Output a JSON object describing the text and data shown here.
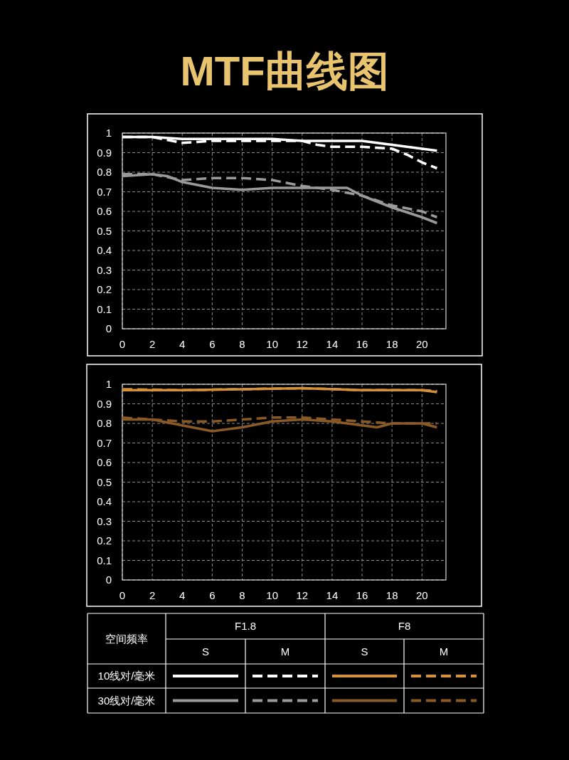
{
  "chart_data": [
    {
      "type": "line",
      "title": "MTF曲线图",
      "xlim": [
        0,
        21.6
      ],
      "ylim": [
        0,
        1
      ],
      "xticks": [
        0,
        2,
        4,
        6,
        8,
        10,
        12,
        14,
        16,
        18,
        20
      ],
      "yticks": [
        0,
        0.1,
        0.2,
        0.3,
        0.4,
        0.5,
        0.6,
        0.7,
        0.8,
        0.9,
        1
      ],
      "grid": true,
      "series": [
        {
          "color": "#ffffff",
          "line_style": "solid",
          "x": [
            0,
            2,
            4,
            6,
            8,
            10,
            12,
            14,
            16,
            18,
            20,
            21
          ],
          "values": [
            0.98,
            0.98,
            0.97,
            0.97,
            0.97,
            0.97,
            0.96,
            0.96,
            0.96,
            0.94,
            0.92,
            0.91
          ]
        },
        {
          "color": "#ffffff",
          "line_style": "dashed",
          "x": [
            0,
            2,
            4,
            5,
            6,
            8,
            10,
            12,
            13,
            14,
            16,
            18,
            19,
            20,
            21
          ],
          "values": [
            0.98,
            0.98,
            0.95,
            0.955,
            0.96,
            0.96,
            0.96,
            0.96,
            0.94,
            0.93,
            0.93,
            0.92,
            0.89,
            0.85,
            0.82
          ]
        },
        {
          "color": "#9a9a9a",
          "line_style": "solid",
          "x": [
            0,
            2,
            3,
            4,
            6,
            8,
            10,
            12,
            14,
            15,
            16,
            18,
            20,
            21
          ],
          "values": [
            0.78,
            0.79,
            0.78,
            0.75,
            0.72,
            0.71,
            0.72,
            0.72,
            0.72,
            0.72,
            0.68,
            0.62,
            0.57,
            0.54
          ]
        },
        {
          "color": "#9a9a9a",
          "line_style": "dashed",
          "x": [
            0,
            2,
            4,
            6,
            8,
            10,
            12,
            14,
            16,
            18,
            20,
            21
          ],
          "values": [
            0.79,
            0.79,
            0.76,
            0.77,
            0.77,
            0.76,
            0.73,
            0.71,
            0.68,
            0.63,
            0.6,
            0.57
          ]
        }
      ]
    },
    {
      "type": "line",
      "xlim": [
        0,
        21.6
      ],
      "ylim": [
        0,
        1
      ],
      "xticks": [
        0,
        2,
        4,
        6,
        8,
        10,
        12,
        14,
        16,
        18,
        20
      ],
      "yticks": [
        0,
        0.1,
        0.2,
        0.3,
        0.4,
        0.5,
        0.6,
        0.7,
        0.8,
        0.9,
        1
      ],
      "grid": true,
      "series": [
        {
          "color": "#d4913a",
          "line_style": "solid",
          "x": [
            0,
            4,
            8,
            12,
            16,
            20,
            21
          ],
          "values": [
            0.97,
            0.97,
            0.975,
            0.98,
            0.97,
            0.97,
            0.96
          ]
        },
        {
          "color": "#d4913a",
          "line_style": "dashed",
          "x": [
            0,
            4,
            8,
            12,
            16,
            20,
            21
          ],
          "values": [
            0.975,
            0.97,
            0.975,
            0.98,
            0.97,
            0.97,
            0.965
          ]
        },
        {
          "color": "#8a5a26",
          "line_style": "solid",
          "x": [
            0,
            2,
            4,
            6,
            8,
            10,
            12,
            14,
            16,
            17,
            18,
            20,
            21
          ],
          "values": [
            0.82,
            0.82,
            0.79,
            0.76,
            0.78,
            0.81,
            0.82,
            0.81,
            0.79,
            0.78,
            0.8,
            0.8,
            0.78
          ]
        },
        {
          "color": "#8a5a26",
          "line_style": "dashed",
          "x": [
            0,
            2,
            4,
            6,
            8,
            10,
            12,
            14,
            16,
            18,
            20,
            21
          ],
          "values": [
            0.83,
            0.82,
            0.81,
            0.81,
            0.82,
            0.83,
            0.83,
            0.82,
            0.81,
            0.8,
            0.8,
            0.8
          ]
        }
      ]
    },
    {
      "type": "other",
      "title": "空间频率",
      "annotations": [
        "F1.8",
        "F8",
        "S",
        "M",
        "S",
        "M",
        "10线对/毫米",
        "30线对/毫米"
      ]
    }
  ]
}
